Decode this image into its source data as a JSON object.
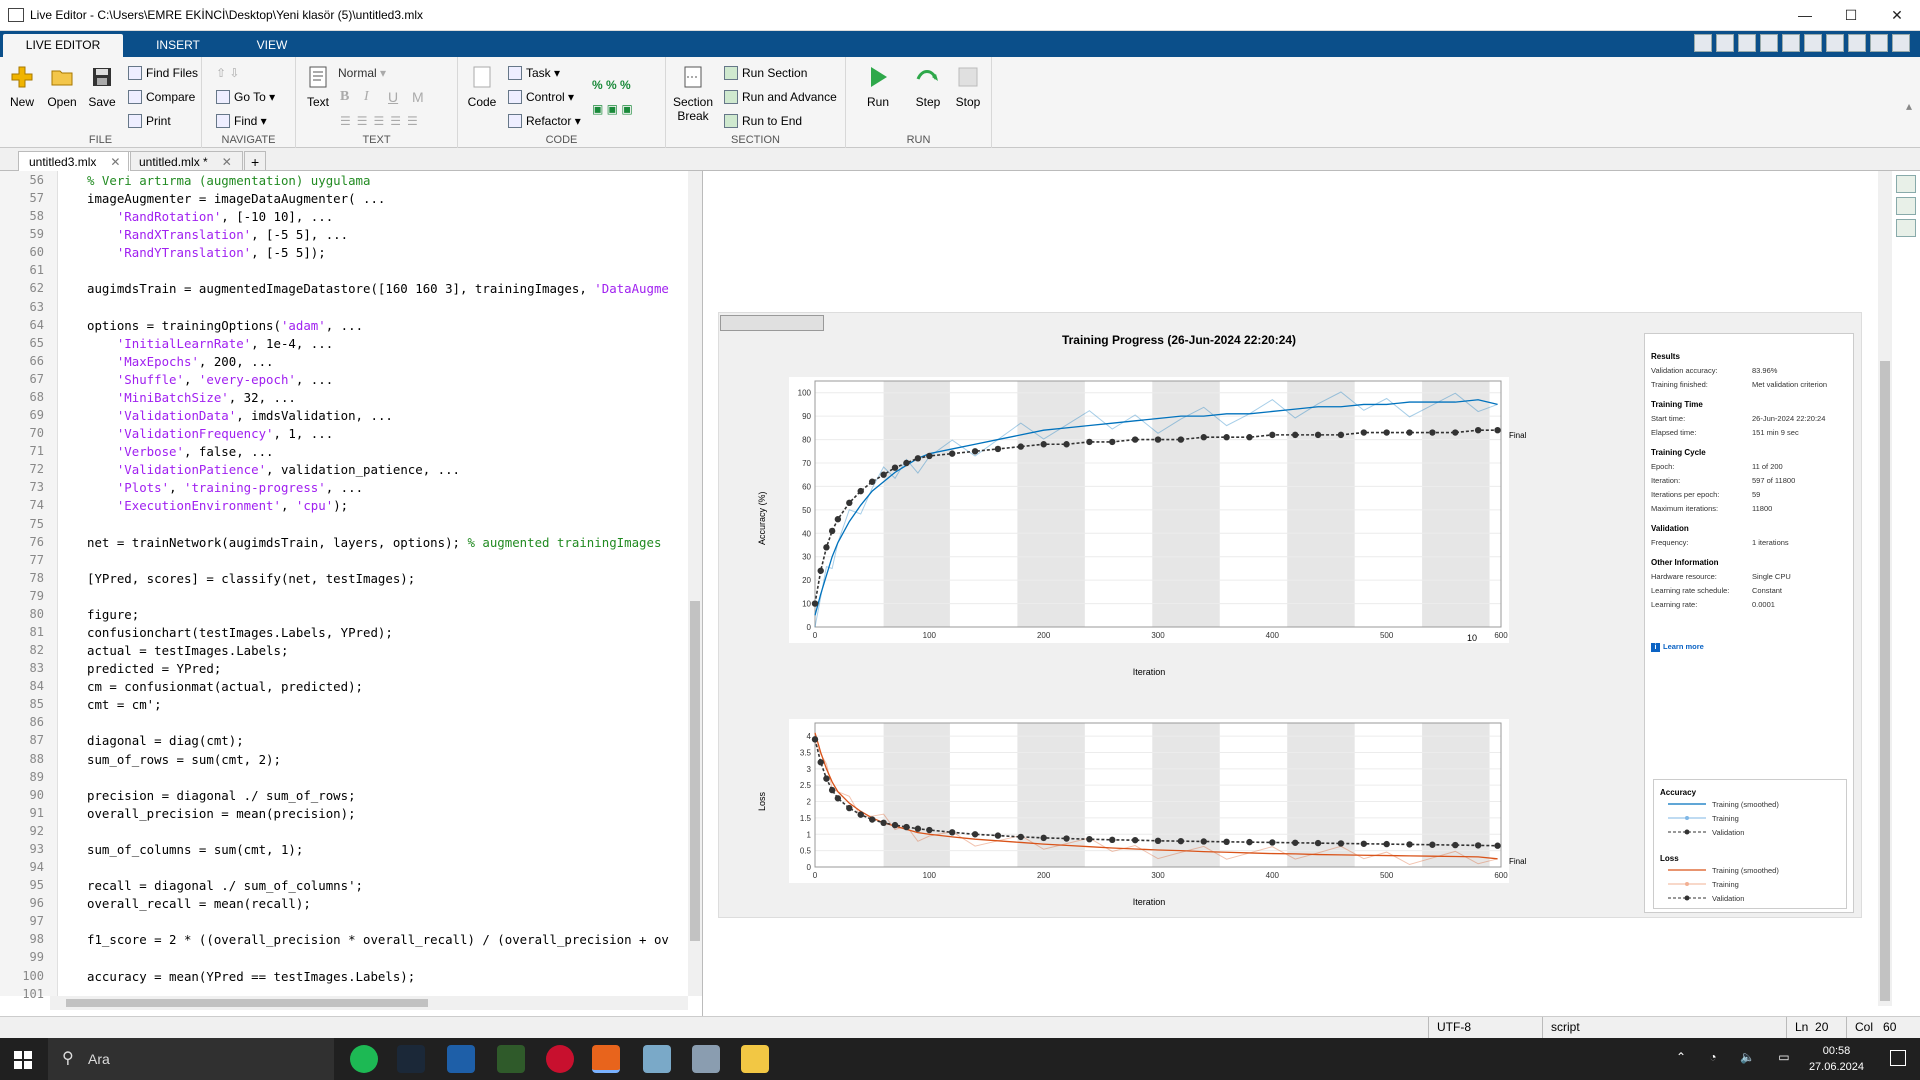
{
  "window": {
    "title": "Live Editor - C:\\Users\\EMRE EKİNCİ\\Desktop\\Yeni klasör (5)\\untitled3.mlx"
  },
  "ribbon_tabs": [
    "LIVE EDITOR",
    "INSERT",
    "VIEW"
  ],
  "ribbon": {
    "file": {
      "label": "FILE",
      "new": "New",
      "open": "Open",
      "save": "Save",
      "find_files": "Find Files",
      "compare": "Compare",
      "print": "Print"
    },
    "navigate": {
      "label": "NAVIGATE",
      "goto": "Go To",
      "find": "Find"
    },
    "text": {
      "label": "TEXT",
      "text": "Text",
      "style": "Normal",
      "bold": "B",
      "italic": "I",
      "underline": "U",
      "mono": "M"
    },
    "code": {
      "label": "CODE",
      "code": "Code",
      "task": "Task",
      "control": "Control",
      "refactor": "Refactor"
    },
    "section": {
      "label": "SECTION",
      "section_break": "Section Break",
      "run_section": "Run Section",
      "run_advance": "Run and Advance",
      "run_end": "Run to End"
    },
    "run": {
      "label": "RUN",
      "run": "Run",
      "step": "Step",
      "stop": "Stop"
    }
  },
  "doc_tabs": [
    {
      "label": "untitled3.mlx",
      "active": true
    },
    {
      "label": "untitled.mlx *",
      "active": false
    }
  ],
  "code_lines": [
    {
      "n": "56",
      "t": [
        [
          "cmt",
          "% Veri artırma (augmentation) uygulama"
        ]
      ]
    },
    {
      "n": "57",
      "t": [
        [
          "p",
          "imageAugmenter = imageDataAugmenter( ..."
        ]
      ]
    },
    {
      "n": "58",
      "t": [
        [
          "p",
          "    "
        ],
        [
          "str",
          "'RandRotation'"
        ],
        [
          "p",
          ", [-10 10], ..."
        ]
      ]
    },
    {
      "n": "59",
      "t": [
        [
          "p",
          "    "
        ],
        [
          "str",
          "'RandXTranslation'"
        ],
        [
          "p",
          ", [-5 5], ..."
        ]
      ]
    },
    {
      "n": "60",
      "t": [
        [
          "p",
          "    "
        ],
        [
          "str",
          "'RandYTranslation'"
        ],
        [
          "p",
          ", [-5 5]);"
        ]
      ]
    },
    {
      "n": "61",
      "t": []
    },
    {
      "n": "62",
      "t": [
        [
          "p",
          "augimdsTrain = augmentedImageDatastore([160 160 3], trainingImages, "
        ],
        [
          "str",
          "'DataAugme"
        ]
      ]
    },
    {
      "n": "63",
      "t": []
    },
    {
      "n": "64",
      "t": [
        [
          "p",
          "options = trainingOptions("
        ],
        [
          "str",
          "'adam'"
        ],
        [
          "p",
          ", ..."
        ]
      ]
    },
    {
      "n": "65",
      "t": [
        [
          "p",
          "    "
        ],
        [
          "str",
          "'InitialLearnRate'"
        ],
        [
          "p",
          ", 1e-4, ..."
        ]
      ]
    },
    {
      "n": "66",
      "t": [
        [
          "p",
          "    "
        ],
        [
          "str",
          "'MaxEpochs'"
        ],
        [
          "p",
          ", 200, ..."
        ]
      ]
    },
    {
      "n": "67",
      "t": [
        [
          "p",
          "    "
        ],
        [
          "str",
          "'Shuffle'"
        ],
        [
          "p",
          ", "
        ],
        [
          "str",
          "'every-epoch'"
        ],
        [
          "p",
          ", ..."
        ]
      ]
    },
    {
      "n": "68",
      "t": [
        [
          "p",
          "    "
        ],
        [
          "str",
          "'MiniBatchSize'"
        ],
        [
          "p",
          ", 32, ..."
        ]
      ]
    },
    {
      "n": "69",
      "t": [
        [
          "p",
          "    "
        ],
        [
          "str",
          "'ValidationData'"
        ],
        [
          "p",
          ", imdsValidation, ..."
        ]
      ]
    },
    {
      "n": "70",
      "t": [
        [
          "p",
          "    "
        ],
        [
          "str",
          "'ValidationFrequency'"
        ],
        [
          "p",
          ", 1, ..."
        ]
      ]
    },
    {
      "n": "71",
      "t": [
        [
          "p",
          "    "
        ],
        [
          "str",
          "'Verbose'"
        ],
        [
          "p",
          ", false, ..."
        ]
      ]
    },
    {
      "n": "72",
      "t": [
        [
          "p",
          "    "
        ],
        [
          "str",
          "'ValidationPatience'"
        ],
        [
          "p",
          ", validation_patience, ..."
        ]
      ]
    },
    {
      "n": "73",
      "t": [
        [
          "p",
          "    "
        ],
        [
          "str",
          "'Plots'"
        ],
        [
          "p",
          ", "
        ],
        [
          "str",
          "'training-progress'"
        ],
        [
          "p",
          ", ..."
        ]
      ]
    },
    {
      "n": "74",
      "t": [
        [
          "p",
          "    "
        ],
        [
          "str",
          "'ExecutionEnvironment'"
        ],
        [
          "p",
          ", "
        ],
        [
          "str",
          "'cpu'"
        ],
        [
          "p",
          ");"
        ]
      ]
    },
    {
      "n": "75",
      "t": []
    },
    {
      "n": "76",
      "t": [
        [
          "p",
          "net = trainNetwork(augimdsTrain, layers, options); "
        ],
        [
          "cmt",
          "% augmented trainingImages"
        ]
      ]
    },
    {
      "n": "77",
      "t": []
    },
    {
      "n": "78",
      "t": [
        [
          "p",
          "[YPred, scores] = classify(net, testImages);"
        ]
      ]
    },
    {
      "n": "79",
      "t": []
    },
    {
      "n": "80",
      "t": [
        [
          "p",
          "figure;"
        ]
      ]
    },
    {
      "n": "81",
      "t": [
        [
          "p",
          "confusionchart(testImages.Labels, YPred);"
        ]
      ]
    },
    {
      "n": "82",
      "t": [
        [
          "p",
          "actual = testImages.Labels;"
        ]
      ]
    },
    {
      "n": "83",
      "t": [
        [
          "p",
          "predicted = YPred;"
        ]
      ]
    },
    {
      "n": "84",
      "t": [
        [
          "p",
          "cm = confusionmat(actual, predicted);"
        ]
      ]
    },
    {
      "n": "85",
      "t": [
        [
          "p",
          "cmt = cm';"
        ]
      ]
    },
    {
      "n": "86",
      "t": []
    },
    {
      "n": "87",
      "t": [
        [
          "p",
          "diagonal = diag(cmt);"
        ]
      ]
    },
    {
      "n": "88",
      "t": [
        [
          "p",
          "sum_of_rows = sum(cmt, 2);"
        ]
      ]
    },
    {
      "n": "89",
      "t": []
    },
    {
      "n": "90",
      "t": [
        [
          "p",
          "precision = diagonal ./ sum_of_rows;"
        ]
      ]
    },
    {
      "n": "91",
      "t": [
        [
          "p",
          "overall_precision = mean(precision);"
        ]
      ]
    },
    {
      "n": "92",
      "t": []
    },
    {
      "n": "93",
      "t": [
        [
          "p",
          "sum_of_columns = sum(cmt, 1);"
        ]
      ]
    },
    {
      "n": "94",
      "t": []
    },
    {
      "n": "95",
      "t": [
        [
          "p",
          "recall = diagonal ./ sum_of_columns';"
        ]
      ]
    },
    {
      "n": "96",
      "t": [
        [
          "p",
          "overall_recall = mean(recall);"
        ]
      ]
    },
    {
      "n": "97",
      "t": []
    },
    {
      "n": "98",
      "t": [
        [
          "p",
          "f1_score = 2 * ((overall_precision * overall_recall) / (overall_precision + ov"
        ]
      ]
    },
    {
      "n": "99",
      "t": []
    },
    {
      "n": "100",
      "t": [
        [
          "p",
          "accuracy = mean(YPred == testImages.Labels);"
        ]
      ]
    },
    {
      "n": "101",
      "t": []
    }
  ],
  "figure": {
    "title": "Training Progress (26-Jun-2024 22:20:24)",
    "acc_ylabel": "Accuracy (%)",
    "loss_ylabel": "Loss",
    "xlabel": "Iteration",
    "final_label": "Final",
    "epoch_label": "10",
    "panel": {
      "results": {
        "header": "Results",
        "rows": [
          [
            "Validation accuracy:",
            "83.96%"
          ],
          [
            "Training finished:",
            "Met validation criterion"
          ]
        ]
      },
      "time": {
        "header": "Training Time",
        "rows": [
          [
            "Start time:",
            "26-Jun-2024 22:20:24"
          ],
          [
            "Elapsed time:",
            "151 min 9 sec"
          ]
        ]
      },
      "cycle": {
        "header": "Training Cycle",
        "rows": [
          [
            "Epoch:",
            "11 of 200"
          ],
          [
            "Iteration:",
            "597 of 11800"
          ],
          [
            "Iterations per epoch:",
            "59"
          ],
          [
            "Maximum iterations:",
            "11800"
          ]
        ]
      },
      "validation": {
        "header": "Validation",
        "rows": [
          [
            "Frequency:",
            "1 iterations"
          ]
        ]
      },
      "other": {
        "header": "Other Information",
        "rows": [
          [
            "Hardware resource:",
            "Single CPU"
          ],
          [
            "Learning rate schedule:",
            "Constant"
          ],
          [
            "Learning rate:",
            "0.0001"
          ]
        ]
      },
      "learn_more": "Learn more"
    },
    "legend": {
      "accuracy_header": "Accuracy",
      "loss_header": "Loss",
      "items": [
        "Training (smoothed)",
        "Training",
        "Validation"
      ]
    }
  },
  "chart_data": [
    {
      "type": "line",
      "title": "Training Progress (26-Jun-2024 22:20:24)",
      "xlabel": "Iteration",
      "ylabel": "Accuracy (%)",
      "xlim": [
        0,
        600
      ],
      "ylim": [
        0,
        105
      ],
      "x_ticks": [
        0,
        100,
        200,
        300,
        400,
        500,
        600
      ],
      "y_ticks": [
        0,
        10,
        20,
        30,
        40,
        50,
        60,
        70,
        80,
        90,
        100
      ],
      "epoch_bands": [
        [
          60,
          118
        ],
        [
          177,
          236
        ],
        [
          295,
          354
        ],
        [
          413,
          472
        ],
        [
          531,
          590
        ]
      ],
      "series": [
        {
          "name": "Training (smoothed)",
          "color": "#0072bd",
          "x": [
            0,
            5,
            10,
            15,
            20,
            30,
            40,
            50,
            60,
            70,
            80,
            90,
            100,
            120,
            140,
            160,
            180,
            200,
            220,
            240,
            260,
            280,
            300,
            320,
            340,
            360,
            380,
            400,
            420,
            440,
            460,
            480,
            500,
            520,
            540,
            560,
            580,
            597
          ],
          "y": [
            5,
            14,
            22,
            30,
            36,
            45,
            52,
            58,
            62,
            66,
            69,
            72,
            74,
            76,
            78,
            80,
            82,
            84,
            85,
            86,
            87,
            88,
            89,
            90,
            90,
            91,
            91,
            92,
            93,
            94,
            94,
            95,
            95,
            96,
            96,
            96,
            97,
            95
          ]
        },
        {
          "name": "Validation",
          "color": "#333333",
          "x": [
            0,
            5,
            10,
            15,
            20,
            30,
            40,
            50,
            60,
            70,
            80,
            90,
            100,
            120,
            140,
            160,
            180,
            200,
            220,
            240,
            260,
            280,
            300,
            320,
            340,
            360,
            380,
            400,
            420,
            440,
            460,
            480,
            500,
            520,
            540,
            560,
            580,
            597
          ],
          "y": [
            10,
            24,
            34,
            41,
            46,
            53,
            58,
            62,
            65,
            68,
            70,
            72,
            73,
            74,
            75,
            76,
            77,
            78,
            78,
            79,
            79,
            80,
            80,
            80,
            81,
            81,
            81,
            82,
            82,
            82,
            82,
            83,
            83,
            83,
            83,
            83,
            84,
            84
          ]
        }
      ]
    },
    {
      "type": "line",
      "xlabel": "Iteration",
      "ylabel": "Loss",
      "xlim": [
        0,
        600
      ],
      "ylim": [
        0,
        4.4
      ],
      "x_ticks": [
        0,
        100,
        200,
        300,
        400,
        500,
        600
      ],
      "y_ticks": [
        0,
        0.5,
        1,
        1.5,
        2,
        2.5,
        3,
        3.5,
        4
      ],
      "epoch_bands": [
        [
          60,
          118
        ],
        [
          177,
          236
        ],
        [
          295,
          354
        ],
        [
          413,
          472
        ],
        [
          531,
          590
        ]
      ],
      "series": [
        {
          "name": "Training (smoothed)",
          "color": "#d95319",
          "x": [
            0,
            5,
            10,
            15,
            20,
            30,
            40,
            50,
            60,
            70,
            80,
            90,
            100,
            120,
            140,
            160,
            180,
            200,
            220,
            240,
            260,
            280,
            300,
            320,
            340,
            360,
            380,
            400,
            420,
            440,
            460,
            480,
            500,
            520,
            540,
            560,
            580,
            597
          ],
          "y": [
            4.1,
            3.5,
            3.0,
            2.6,
            2.3,
            1.95,
            1.7,
            1.5,
            1.35,
            1.25,
            1.15,
            1.05,
            1.0,
            0.92,
            0.85,
            0.8,
            0.75,
            0.7,
            0.66,
            0.62,
            0.58,
            0.55,
            0.52,
            0.5,
            0.47,
            0.45,
            0.43,
            0.41,
            0.4,
            0.38,
            0.37,
            0.36,
            0.35,
            0.34,
            0.33,
            0.32,
            0.31,
            0.25
          ]
        },
        {
          "name": "Validation",
          "color": "#333333",
          "x": [
            0,
            5,
            10,
            15,
            20,
            30,
            40,
            50,
            60,
            70,
            80,
            90,
            100,
            120,
            140,
            160,
            180,
            200,
            220,
            240,
            260,
            280,
            300,
            320,
            340,
            360,
            380,
            400,
            420,
            440,
            460,
            480,
            500,
            520,
            540,
            560,
            580,
            597
          ],
          "y": [
            3.9,
            3.2,
            2.7,
            2.35,
            2.1,
            1.8,
            1.6,
            1.45,
            1.35,
            1.28,
            1.22,
            1.17,
            1.13,
            1.06,
            1.0,
            0.96,
            0.92,
            0.89,
            0.87,
            0.85,
            0.83,
            0.82,
            0.8,
            0.79,
            0.78,
            0.77,
            0.76,
            0.75,
            0.74,
            0.73,
            0.72,
            0.71,
            0.7,
            0.69,
            0.68,
            0.67,
            0.66,
            0.65
          ]
        }
      ]
    }
  ],
  "status": {
    "encoding": "UTF-8",
    "type": "script",
    "ln_label": "Ln",
    "ln": "20",
    "col_label": "Col",
    "col": "60"
  },
  "taskbar": {
    "search": "Ara",
    "time": "00:58",
    "date": "27.06.2024"
  }
}
